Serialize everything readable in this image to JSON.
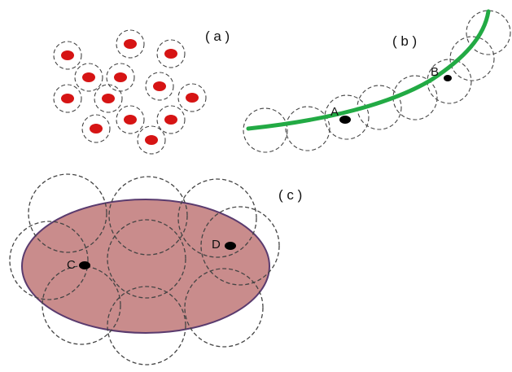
{
  "diagram": {
    "colors": {
      "dashed_circle": "#444444",
      "red_point": "#d61414",
      "curve": "#22aa44",
      "ellipse_fill": "#c98c8c",
      "ellipse_stroke": "#5a3b6e",
      "black_point": "#000000"
    },
    "panel_a": {
      "label": "( a )"
    },
    "panel_b": {
      "label": "( b )",
      "points": [
        {
          "label": "A"
        },
        {
          "label": "B"
        }
      ]
    },
    "panel_c": {
      "label": "( c )",
      "points": [
        {
          "label": "C"
        },
        {
          "label": "D"
        }
      ]
    }
  }
}
